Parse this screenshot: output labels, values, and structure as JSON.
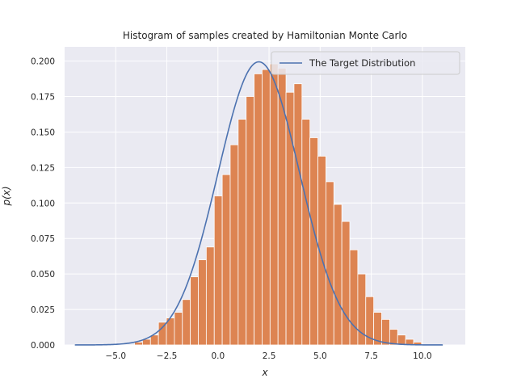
{
  "chart_data": {
    "type": "bar",
    "title": "Histogram of samples created by Hamiltonian Monte Carlo",
    "xlabel": "x",
    "ylabel": "p(x)",
    "xlim": [
      -7.5,
      12.1
    ],
    "ylim": [
      0,
      0.21
    ],
    "grid": true,
    "legend_position": "top-right",
    "x_ticks": [
      -5.0,
      -2.5,
      0.0,
      2.5,
      5.0,
      7.5,
      10.0
    ],
    "x_tick_labels": [
      "−5.0",
      "−2.5",
      "0.0",
      "2.5",
      "5.0",
      "7.5",
      "10.0"
    ],
    "y_ticks": [
      0,
      0.025,
      0.05,
      0.075,
      0.1,
      0.125,
      0.15,
      0.175,
      0.2
    ],
    "y_tick_labels": [
      "0.000",
      "0.025",
      "0.050",
      "0.075",
      "0.100",
      "0.125",
      "0.150",
      "0.175",
      "0.200"
    ],
    "histogram": {
      "bin_width": 0.39,
      "bins": [
        {
          "left": -4.08,
          "height": 0.002
        },
        {
          "left": -3.69,
          "height": 0.004
        },
        {
          "left": -3.3,
          "height": 0.007
        },
        {
          "left": -2.91,
          "height": 0.016
        },
        {
          "left": -2.52,
          "height": 0.019
        },
        {
          "left": -2.13,
          "height": 0.023
        },
        {
          "left": -1.74,
          "height": 0.032
        },
        {
          "left": -1.35,
          "height": 0.048
        },
        {
          "left": -0.96,
          "height": 0.06
        },
        {
          "left": -0.57,
          "height": 0.069
        },
        {
          "left": -0.18,
          "height": 0.105
        },
        {
          "left": 0.21,
          "height": 0.12
        },
        {
          "left": 0.6,
          "height": 0.141
        },
        {
          "left": 0.99,
          "height": 0.159
        },
        {
          "left": 1.38,
          "height": 0.175
        },
        {
          "left": 1.77,
          "height": 0.191
        },
        {
          "left": 2.16,
          "height": 0.194
        },
        {
          "left": 2.55,
          "height": 0.198
        },
        {
          "left": 2.94,
          "height": 0.195
        },
        {
          "left": 3.33,
          "height": 0.178
        },
        {
          "left": 3.72,
          "height": 0.184
        },
        {
          "left": 4.11,
          "height": 0.159
        },
        {
          "left": 4.5,
          "height": 0.146
        },
        {
          "left": 4.89,
          "height": 0.133
        },
        {
          "left": 5.28,
          "height": 0.115
        },
        {
          "left": 5.67,
          "height": 0.099
        },
        {
          "left": 6.06,
          "height": 0.087
        },
        {
          "left": 6.45,
          "height": 0.067
        },
        {
          "left": 6.84,
          "height": 0.05
        },
        {
          "left": 7.23,
          "height": 0.034
        },
        {
          "left": 7.62,
          "height": 0.023
        },
        {
          "left": 8.01,
          "height": 0.018
        },
        {
          "left": 8.4,
          "height": 0.011
        },
        {
          "left": 8.79,
          "height": 0.007
        },
        {
          "left": 9.18,
          "height": 0.004
        },
        {
          "left": 9.57,
          "height": 0.002
        }
      ]
    },
    "series": [
      {
        "name": "The Target Distribution",
        "kind": "line",
        "distribution": "normal",
        "mean": 2.0,
        "std": 2.0,
        "x_range": [
          -7.0,
          11.0
        ]
      }
    ],
    "colors": {
      "background": "#eaeaf2",
      "grid": "#ffffff",
      "bar": "#dd8452",
      "bar_edge": "#ffffff",
      "line": "#4c72b0",
      "legend_bg": "#eaeaf2",
      "legend_edge": "#cccccc",
      "text": "#262626"
    }
  }
}
